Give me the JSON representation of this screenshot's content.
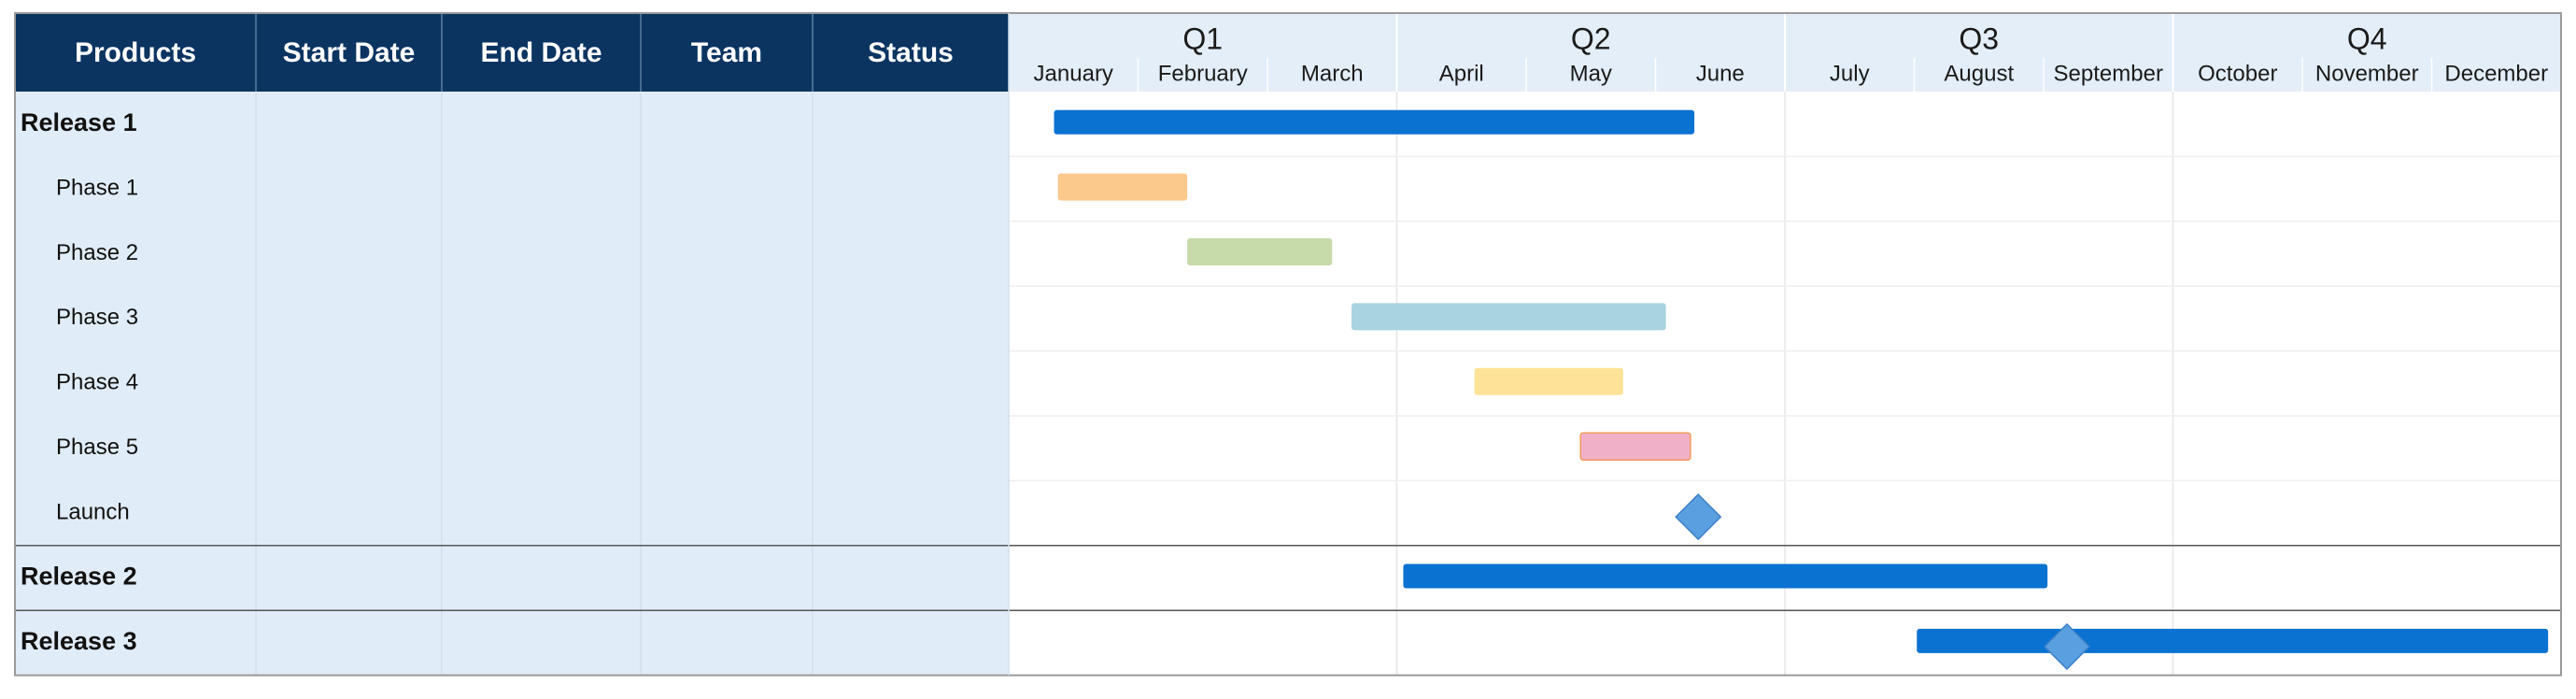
{
  "table": {
    "headers": [
      "Products",
      "Start Date",
      "End Date",
      "Team",
      "Status"
    ]
  },
  "colors": {
    "header_bg": "#0b3461",
    "table_bg": "#e0ecf8",
    "quarter_bg": "#e3eef9",
    "release_bar": "#0a72d0",
    "milestone": "#5aa0e0",
    "gridline": "#e6e6e6",
    "row_divider": "#555555"
  },
  "chart_data": {
    "type": "gantt",
    "quarters": [
      "Q1",
      "Q2",
      "Q3",
      "Q4"
    ],
    "months": [
      "January",
      "February",
      "March",
      "April",
      "May",
      "June",
      "July",
      "August",
      "September",
      "October",
      "November",
      "December"
    ],
    "rows": [
      {
        "label": "Release 1",
        "bold": true,
        "start": 0.35,
        "end": 5.3,
        "color": "#0a72d0",
        "milestones": []
      },
      {
        "label": "Phase 1",
        "bold": false,
        "start": 0.38,
        "end": 1.38,
        "color": "#fcc98d",
        "milestones": []
      },
      {
        "label": "Phase 2",
        "bold": false,
        "start": 1.38,
        "end": 2.5,
        "color": "#c6dba9",
        "milestones": []
      },
      {
        "label": "Phase 3",
        "bold": false,
        "start": 2.65,
        "end": 5.08,
        "color": "#a9d3de",
        "milestones": []
      },
      {
        "label": "Phase 4",
        "bold": false,
        "start": 3.6,
        "end": 4.75,
        "color": "#fde297",
        "milestones": []
      },
      {
        "label": "Phase 5",
        "bold": false,
        "start": 4.42,
        "end": 5.27,
        "color": "#f0b1c8",
        "milestones": []
      },
      {
        "label": "Launch",
        "bold": false,
        "start": null,
        "end": null,
        "color": "#5aa0e0",
        "milestones": [
          5.33
        ]
      },
      {
        "label": "Release 2",
        "bold": true,
        "start": 3.05,
        "end": 8.03,
        "color": "#0a72d0",
        "milestones": []
      },
      {
        "label": "Release 3",
        "bold": true,
        "start": 7.02,
        "end": 11.9,
        "color": "#0a72d0",
        "milestones": [
          8.18
        ]
      }
    ]
  }
}
